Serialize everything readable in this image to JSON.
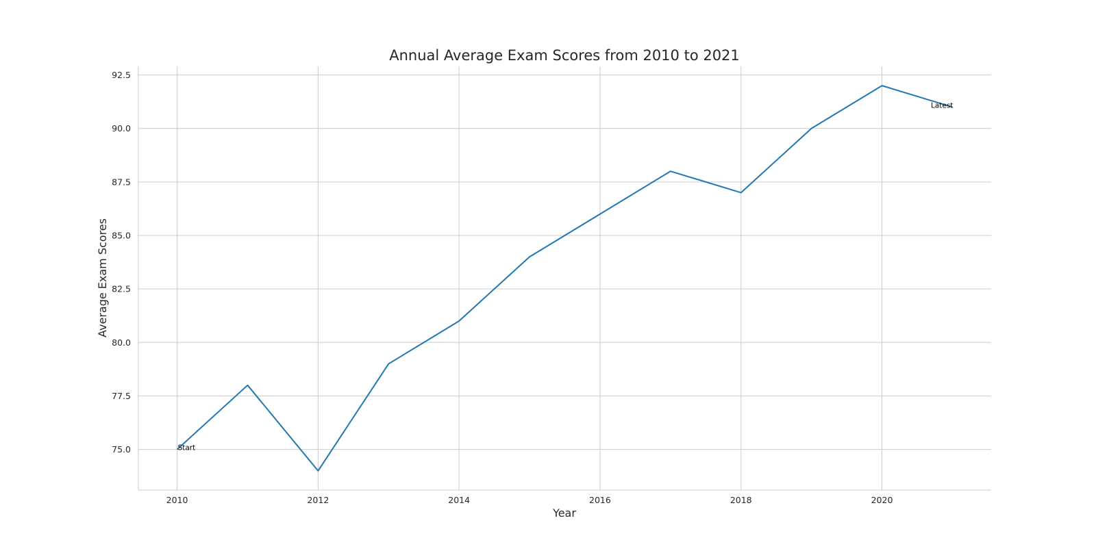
{
  "chart_data": {
    "type": "line",
    "title": "Annual Average Exam Scores from 2010 to 2021",
    "xlabel": "Year",
    "ylabel": "Average Exam Scores",
    "x": [
      2010,
      2011,
      2012,
      2013,
      2014,
      2015,
      2016,
      2017,
      2018,
      2019,
      2020,
      2021
    ],
    "series": [
      {
        "values": [
          75,
          78,
          74,
          79,
          81,
          84,
          86,
          88,
          87,
          90,
          92,
          91
        ]
      }
    ],
    "xlim": [
      2009.45,
      2021.55
    ],
    "ylim": [
      73.1,
      92.9
    ],
    "x_ticks": [
      2010,
      2012,
      2014,
      2016,
      2018,
      2020
    ],
    "y_ticks": [
      "75.0",
      "77.5",
      "80.0",
      "82.5",
      "85.0",
      "87.5",
      "90.0",
      "92.5"
    ],
    "grid": true,
    "line_color": "#1f77b4",
    "annotations": [
      {
        "text": "Start",
        "x": 2010,
        "y": 75
      },
      {
        "text": "Latest",
        "x": 2021,
        "y": 91
      }
    ]
  }
}
